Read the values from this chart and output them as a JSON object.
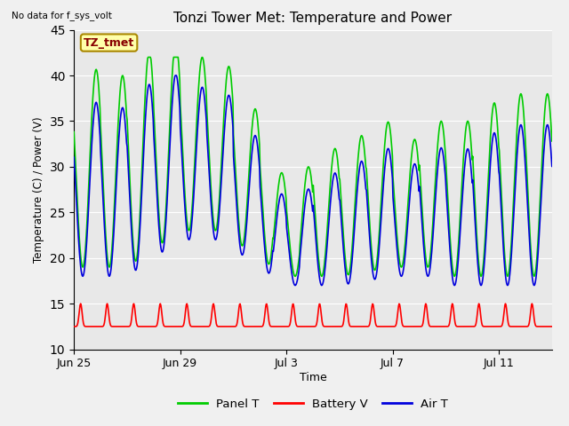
{
  "title": "Tonzi Tower Met: Temperature and Power",
  "top_left_text": "No data for f_sys_volt",
  "annotation_label": "TZ_tmet",
  "xlabel": "Time",
  "ylabel": "Temperature (C) / Power (V)",
  "ylim": [
    10,
    45
  ],
  "yticks": [
    10,
    15,
    20,
    25,
    30,
    35,
    40,
    45
  ],
  "x_tick_labels": [
    "Jun 25",
    "Jun 29",
    "Jul 3",
    "Jul 7",
    "Jul 11"
  ],
  "x_tick_positions": [
    0,
    4,
    8,
    12,
    16
  ],
  "fig_bg_color": "#f0f0f0",
  "plot_bg_color": "#e8e8e8",
  "panel_T_color": "#00cc00",
  "battery_V_color": "#ff0000",
  "air_T_color": "#0000dd",
  "line_width": 1.2,
  "total_days": 18,
  "legend_entries": [
    "Panel T",
    "Battery V",
    "Air T"
  ],
  "legend_colors": [
    "#00cc00",
    "#ff0000",
    "#0000dd"
  ],
  "grid_color": "#ffffff",
  "annotation_text_color": "#880000",
  "annotation_bg": "#ffffaa",
  "annotation_edge": "#aa8800"
}
